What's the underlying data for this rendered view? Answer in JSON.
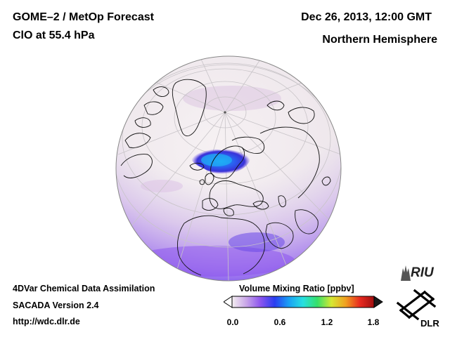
{
  "header": {
    "title": "GOME–2 / MetOp Forecast",
    "species": "ClO at 55.4 hPa",
    "datetime": "Dec 26, 2013, 12:00 GMT",
    "region": "Northern Hemisphere"
  },
  "footer": {
    "line1": "4DVar Chemical Data Assimilation",
    "line2": "SACADA Version 2.4",
    "line3": "http://wdc.dlr.de"
  },
  "colorbar": {
    "title": "Volume Mixing Ratio [ppbv]",
    "ticks": [
      "0.0",
      "0.6",
      "1.2",
      "1.8"
    ],
    "range": [
      0.0,
      1.8
    ],
    "colors": [
      "#f4eef0",
      "#c9a6e8",
      "#8c55ee",
      "#2a3df0",
      "#1aa0f5",
      "#27e0e0",
      "#36e06a",
      "#d6e832",
      "#f0a020",
      "#e82a20",
      "#a01010"
    ]
  },
  "logos": {
    "riu": "RIU",
    "dlr": "DLR"
  },
  "map": {
    "projection": "orthographic, northern hemisphere",
    "globe_fill": "#f2eef0",
    "coast_color": "#111111",
    "graticule_color": "#c8c4c8"
  }
}
